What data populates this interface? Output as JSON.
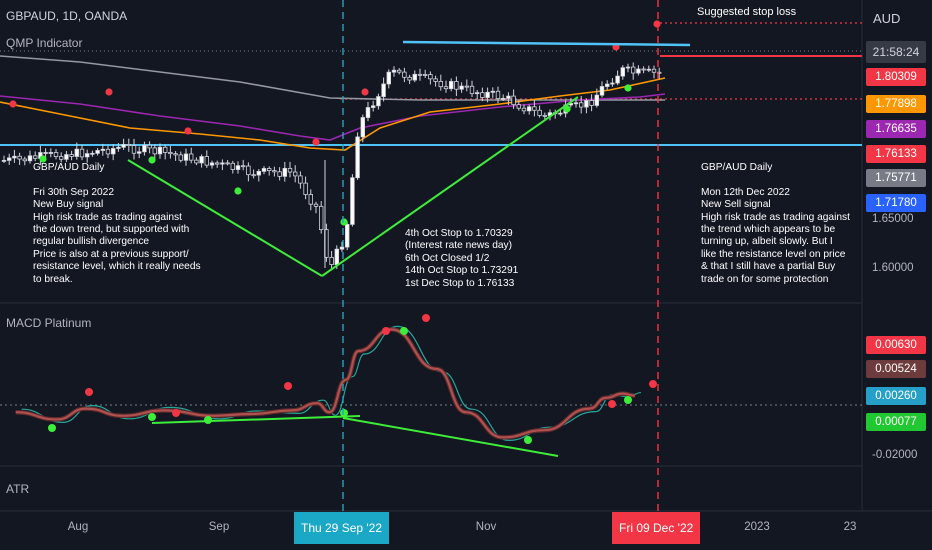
{
  "header": {
    "symbol": "GBPAUD, 1D, OANDA",
    "indicator": "QMP Indicator",
    "currency": "AUD",
    "clock": "21:58:24"
  },
  "price_tags": [
    {
      "label": "1.80309",
      "color": "#f23645"
    },
    {
      "label": "1.77898",
      "color": "#ff9800"
    },
    {
      "label": "1.76635",
      "color": "#9c27b0"
    },
    {
      "label": "1.76133",
      "color": "#f23645"
    },
    {
      "label": "1.75771",
      "color": "#787b86"
    },
    {
      "label": "1.71780",
      "color": "#2962ff"
    }
  ],
  "price_axis": {
    "labels": [
      "1.65000",
      "1.60000"
    ]
  },
  "annotations": {
    "stop_loss": "Suggested stop loss",
    "left_note": "GBP/AUD Daily\n\nFri 30th Sep 2022\nNew Buy signal\nHigh risk trade as trading against\nthe down trend, but supported with\nregular bullish divergence\nPrice is also at a previous support/\nresistance level, which it really needs\nto break.",
    "mid_note": "4th Oct Stop to 1.70329\n(Interest rate news day)\n6th Oct Closed 1/2\n14th Oct Stop to 1.73291\n1st Dec Stop to 1.76133",
    "right_note": "GBP/AUD Daily\n\nMon 12th Dec 2022\nNew Sell signal\nHigh risk trade as trading against\nthe trend which appears to be\nturning up, albeit slowly. But I\nlike the resistance level on price\n& that I still have a partial Buy\ntrade on for some protection"
  },
  "macd": {
    "title": "MACD Platinum",
    "tags": [
      {
        "label": "0.00630",
        "color": "#f23645"
      },
      {
        "label": "0.00524",
        "color": "#6d3b3b"
      },
      {
        "label": "0.00260",
        "color": "#26a0c8"
      },
      {
        "label": "0.00077",
        "color": "#22c832"
      }
    ],
    "axis_label": "-0.02000"
  },
  "atr": {
    "title": "ATR"
  },
  "time_axis": {
    "labels": [
      "Aug",
      "Sep",
      "Nov",
      "2023",
      "23"
    ],
    "highlight_buy": "Thu 29 Sep '22",
    "highlight_sell": "Fri 09 Dec '22"
  },
  "chart_data": {
    "type": "line",
    "title": "GBPAUD, 1D, OANDA",
    "y_unit": "AUD",
    "ylim": [
      1.58,
      1.86
    ],
    "x": [
      "2022-07-15",
      "2022-07-25",
      "2022-08-01",
      "2022-08-10",
      "2022-08-20",
      "2022-09-01",
      "2022-09-10",
      "2022-09-20",
      "2022-09-26",
      "2022-09-29",
      "2022-10-03",
      "2022-10-06",
      "2022-10-14",
      "2022-10-25",
      "2022-11-01",
      "2022-11-10",
      "2022-11-20",
      "2022-12-01",
      "2022-12-05",
      "2022-12-09",
      "2022-12-12"
    ],
    "series": [
      {
        "name": "Close",
        "values": [
          1.712,
          1.718,
          1.72,
          1.726,
          1.72,
          1.709,
          1.699,
          1.7,
          1.662,
          1.598,
          1.636,
          1.748,
          1.804,
          1.794,
          1.786,
          1.778,
          1.758,
          1.772,
          1.792,
          1.806,
          1.803
        ]
      }
    ],
    "horizontal_levels": [
      1.80309,
      1.77898,
      1.76635,
      1.76133,
      1.75771,
      1.7178
    ],
    "macd_series": [
      {
        "name": "MACD",
        "values": [
          -0.004,
          -0.008,
          -0.002,
          -0.006,
          -0.003,
          -0.006,
          -0.005,
          -0.003,
          0.001,
          -0.004,
          0.014,
          0.03,
          0.042,
          0.02,
          -0.004,
          -0.018,
          -0.014,
          -0.002,
          0.004,
          0.0063,
          0.00524
        ]
      }
    ],
    "grid": false,
    "legend": "none"
  }
}
